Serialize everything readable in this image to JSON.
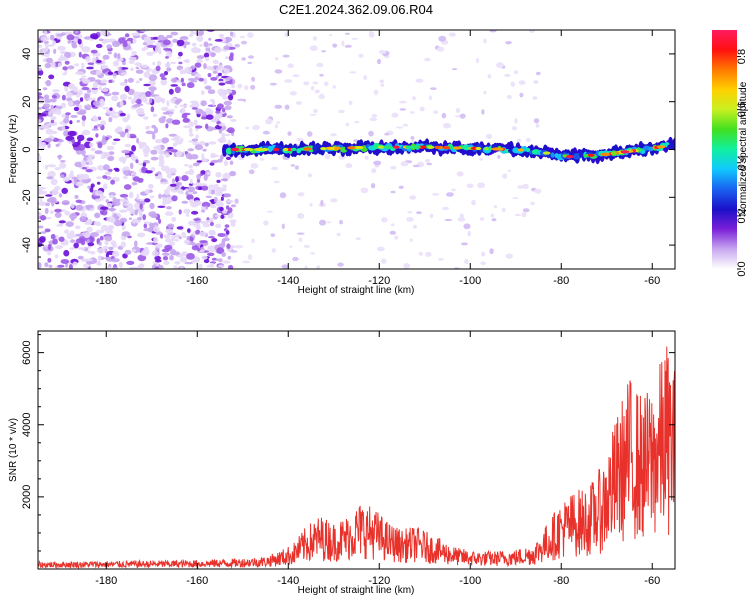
{
  "title": "C2E1.2024.362.09.06.R04",
  "colorbar_label": "Normalized spectral amplitude",
  "colors": {
    "snr_line": "#e8312a",
    "frame": "#000000",
    "background": "#ffffff"
  },
  "chart_data": [
    {
      "type": "heatmap",
      "name": "spectrogram",
      "xlabel": "Height of straight line (km)",
      "ylabel": "Frequency (Hz)",
      "xlim": [
        -195,
        -55
      ],
      "ylim": [
        -50,
        50
      ],
      "xticks": [
        -180,
        -160,
        -140,
        -120,
        -100,
        -80,
        -60
      ],
      "xtick_labels": [
        "-180",
        "-160",
        "-140",
        "-120",
        "-100",
        "-80",
        "-60"
      ],
      "yticks": [
        -40,
        -20,
        0,
        20,
        40
      ],
      "ytick_labels": [
        "-40",
        "-20",
        "0",
        "20",
        "40"
      ],
      "colorbar": {
        "range": [
          0,
          0.9
        ],
        "ticks": [
          0,
          0.2,
          0.4,
          0.6,
          0.8
        ],
        "tick_labels": [
          "0.0",
          "0.2",
          "0.4",
          "0.6",
          "0.8"
        ],
        "stops": [
          "#ffffff",
          "#c8a8f0",
          "#7a1fd8",
          "#1a10c8",
          "#1a60f0",
          "#10c8ff",
          "#10f0a0",
          "#40e020",
          "#c8f020",
          "#ffd000",
          "#ff7a00",
          "#ff1010",
          "#ff1c60"
        ]
      },
      "signal_band": {
        "x_start": -154,
        "x_end": -55,
        "center_freq": [
          [
            -154,
            0
          ],
          [
            -140,
            0
          ],
          [
            -120,
            1
          ],
          [
            -110,
            1
          ],
          [
            -100,
            0.5
          ],
          [
            -90,
            0
          ],
          [
            -85,
            -1
          ],
          [
            -78,
            -3
          ],
          [
            -70,
            -2
          ],
          [
            -62,
            0
          ],
          [
            -55,
            2
          ]
        ],
        "peak_amplitude": 0.85
      },
      "noise_region": {
        "dense_x_end": -152,
        "sparse_x_end": -85
      }
    },
    {
      "type": "line",
      "name": "snr",
      "xlabel": "Height of straight line (km)",
      "ylabel": "SNR (10 * v/v)",
      "xlim": [
        -195,
        -55
      ],
      "ylim": [
        0,
        6600
      ],
      "xticks": [
        -180,
        -160,
        -140,
        -120,
        -100,
        -80,
        -60
      ],
      "xtick_labels": [
        "-180",
        "-160",
        "-140",
        "-120",
        "-100",
        "-80",
        "-60"
      ],
      "yticks": [
        2000,
        4000,
        6000
      ],
      "ytick_labels": [
        "2000",
        "4000",
        "6000"
      ],
      "envelope": [
        [
          -195,
          200
        ],
        [
          -160,
          250
        ],
        [
          -150,
          300
        ],
        [
          -145,
          350
        ],
        [
          -142,
          500
        ],
        [
          -139,
          700
        ],
        [
          -136,
          1200
        ],
        [
          -133,
          1500
        ],
        [
          -130,
          1300
        ],
        [
          -127,
          1500
        ],
        [
          -124,
          1900
        ],
        [
          -121,
          1700
        ],
        [
          -118,
          1300
        ],
        [
          -115,
          1100
        ],
        [
          -112,
          1200
        ],
        [
          -109,
          1000
        ],
        [
          -106,
          800
        ],
        [
          -103,
          600
        ],
        [
          -99,
          500
        ],
        [
          -95,
          500
        ],
        [
          -90,
          550
        ],
        [
          -86,
          700
        ],
        [
          -83,
          1300
        ],
        [
          -80,
          1900
        ],
        [
          -77,
          2200
        ],
        [
          -74,
          2300
        ],
        [
          -71,
          2900
        ],
        [
          -68,
          4200
        ],
        [
          -65,
          5400
        ],
        [
          -62,
          4800
        ],
        [
          -59,
          5400
        ],
        [
          -57,
          6400
        ],
        [
          -55,
          5600
        ]
      ]
    }
  ]
}
